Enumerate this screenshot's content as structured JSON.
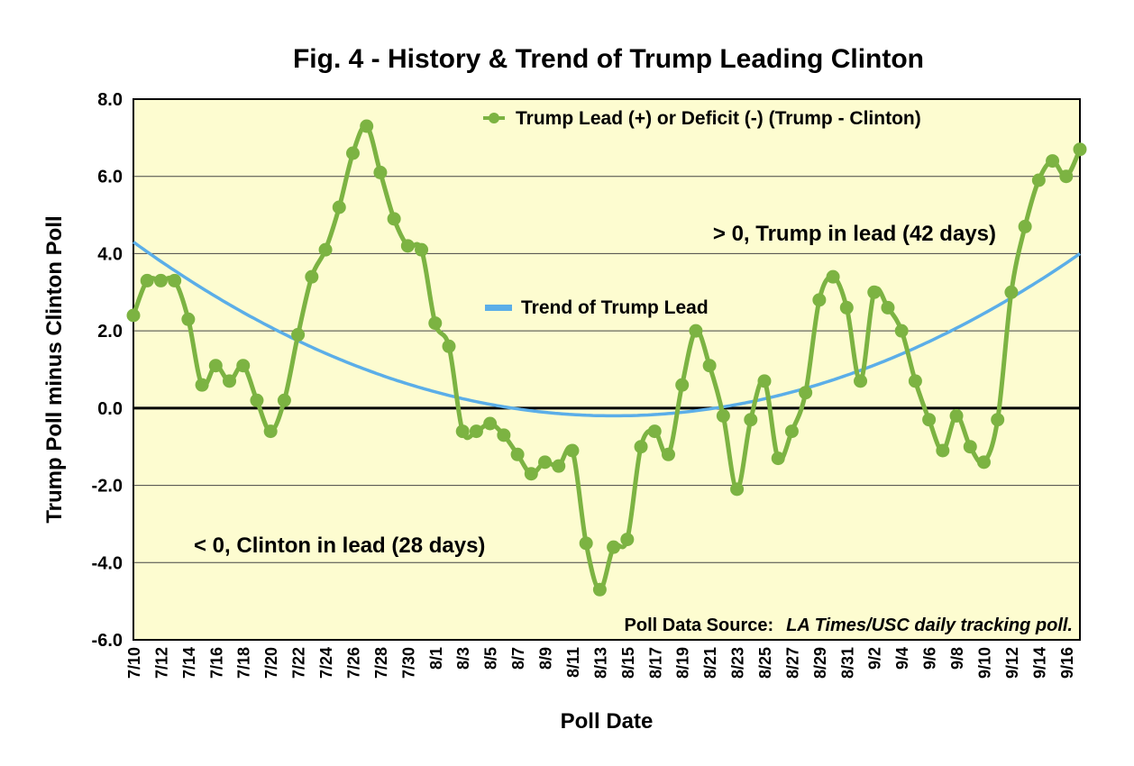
{
  "colors": {
    "plot_bg": "#fdfcd0",
    "series": "#7cb342",
    "trend": "#5baee8",
    "grid": "#444444"
  },
  "chart_data": {
    "type": "line",
    "title": "Fig. 4 - History & Trend of Trump Leading Clinton",
    "xlabel": "Poll Date",
    "ylabel": "Trump Poll minus Clinton Poll",
    "ylim": [
      -6.0,
      8.0
    ],
    "yticks": [
      "8.0",
      "6.0",
      "4.0",
      "2.0",
      "0.0",
      "-2.0",
      "-4.0",
      "-6.0"
    ],
    "ytick_values": [
      8,
      6,
      4,
      2,
      0,
      -2,
      -4,
      -6
    ],
    "x_tick_labels": [
      "7/10",
      "7/12",
      "7/14",
      "7/16",
      "7/18",
      "7/20",
      "7/22",
      "7/24",
      "7/26",
      "7/28",
      "7/30",
      "8/1",
      "8/3",
      "8/5",
      "8/7",
      "8/9",
      "8/11",
      "8/13",
      "8/15",
      "8/17",
      "8/19",
      "8/21",
      "8/23",
      "8/25",
      "8/27",
      "8/29",
      "8/31",
      "9/2",
      "9/4",
      "9/6",
      "9/8",
      "9/10",
      "9/12",
      "9/14",
      "9/16"
    ],
    "x": [
      "7/10",
      "7/11",
      "7/12",
      "7/13",
      "7/14",
      "7/15",
      "7/16",
      "7/17",
      "7/18",
      "7/19",
      "7/20",
      "7/21",
      "7/22",
      "7/23",
      "7/24",
      "7/25",
      "7/26",
      "7/27",
      "7/28",
      "7/29",
      "7/30",
      "7/31",
      "8/1",
      "8/2",
      "8/3",
      "8/4",
      "8/5",
      "8/6",
      "8/7",
      "8/8",
      "8/9",
      "8/10",
      "8/11",
      "8/12",
      "8/13",
      "8/14",
      "8/15",
      "8/16",
      "8/17",
      "8/18",
      "8/19",
      "8/20",
      "8/21",
      "8/22",
      "8/23",
      "8/24",
      "8/25",
      "8/26",
      "8/27",
      "8/28",
      "8/29",
      "8/30",
      "8/31",
      "9/1",
      "9/2",
      "9/3",
      "9/4",
      "9/5",
      "9/6",
      "9/7",
      "9/8",
      "9/9",
      "9/10",
      "9/11",
      "9/12",
      "9/13",
      "9/14",
      "9/15",
      "9/16",
      "9/17"
    ],
    "series": [
      {
        "name": "Trump Lead (+) or Deficit (-) (Trump - Clinton)",
        "values": [
          2.4,
          3.3,
          3.3,
          3.3,
          2.3,
          0.6,
          1.1,
          0.7,
          1.1,
          0.2,
          -0.6,
          0.2,
          1.9,
          3.4,
          4.1,
          5.2,
          6.6,
          7.3,
          6.1,
          4.9,
          4.2,
          4.1,
          2.2,
          1.6,
          -0.6,
          -0.6,
          -0.4,
          -0.7,
          -1.2,
          -1.7,
          -1.4,
          -1.5,
          -1.1,
          -3.5,
          -4.7,
          -3.6,
          -3.4,
          -1.0,
          -0.6,
          -1.2,
          0.6,
          2.0,
          1.1,
          -0.2,
          -2.1,
          -0.3,
          0.7,
          -1.3,
          -0.6,
          0.4,
          2.8,
          3.4,
          2.6,
          0.7,
          3.0,
          2.6,
          2.0,
          0.7,
          -0.3,
          -1.1,
          -0.2,
          -1.0,
          -1.4,
          -0.3,
          3.0,
          4.7,
          5.9,
          6.4,
          6.0,
          6.7
        ]
      },
      {
        "name": "Trend of Trump Lead",
        "type": "quadratic",
        "start": 4.3,
        "min": -0.2,
        "min_at": "8/14",
        "end": 4.0
      }
    ],
    "annotations": [
      "> 0, Trump in lead (42 days)",
      "< 0, Clinton in lead (28 days)"
    ],
    "source_label": "Poll Data Source:",
    "source_text": "LA Times/USC daily tracking poll."
  }
}
